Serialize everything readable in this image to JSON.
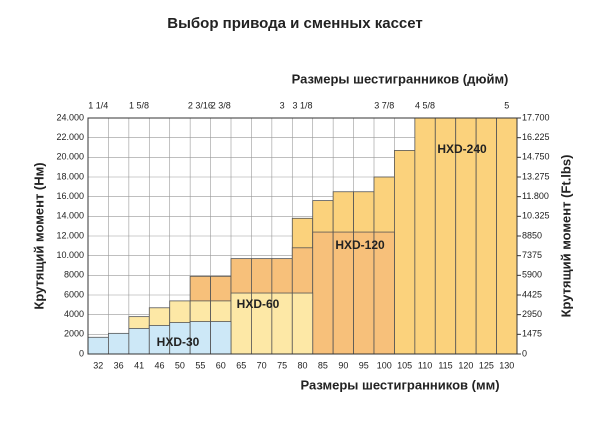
{
  "chart_data": {
    "type": "step",
    "title": "Выбор привода и сменных кассет",
    "top_axis_label": "Размеры шестигранников (дюйм)",
    "x_axis_label": "Размеры шестигранников (мм)",
    "y_axis_label": "Крутящий момент (Нм)",
    "y2_axis_label": "Крутящий момент (Ft.lbs)",
    "categories": [
      "32",
      "36",
      "41",
      "46",
      "50",
      "55",
      "60",
      "65",
      "70",
      "75",
      "80",
      "85",
      "90",
      "95",
      "100",
      "105",
      "110",
      "115",
      "120",
      "125",
      "130"
    ],
    "top_categories": [
      "1 1/4",
      null,
      "1 5/8",
      null,
      null,
      "2 3/16",
      "2 3/8",
      null,
      null,
      "3",
      "3 1/8",
      null,
      null,
      null,
      "3 7/8",
      null,
      "4 5/8",
      null,
      null,
      null,
      "5"
    ],
    "series": [
      {
        "name": "HXD-240",
        "color": "#fbd27c",
        "values": [
          null,
          null,
          null,
          null,
          null,
          null,
          null,
          null,
          null,
          null,
          13800,
          15600,
          16500,
          16500,
          18000,
          20700,
          24000,
          24000,
          24000,
          24000,
          24000
        ]
      },
      {
        "name": "HXD-120",
        "color": "#f7c07a",
        "values": [
          null,
          null,
          null,
          null,
          null,
          7900,
          7900,
          9700,
          9700,
          9700,
          10800,
          12400,
          12400,
          12400,
          12400,
          null,
          null,
          null,
          null,
          null,
          null
        ]
      },
      {
        "name": "HXD-60",
        "color": "#fde8a6",
        "values": [
          null,
          null,
          3800,
          4700,
          5400,
          5400,
          5400,
          6200,
          6200,
          6200,
          6200,
          null,
          null,
          null,
          null,
          null,
          null,
          null,
          null,
          null,
          null
        ]
      },
      {
        "name": "HXD-30",
        "color": "#cde8f7",
        "values": [
          1700,
          2100,
          2600,
          2900,
          3200,
          3300,
          3300,
          null,
          null,
          null,
          null,
          null,
          null,
          null,
          null,
          null,
          null,
          null,
          null,
          null,
          null
        ]
      }
    ],
    "ylim": [
      0,
      24000
    ],
    "yticks": [
      0,
      2000,
      4000,
      6000,
      8000,
      {
        "value": 10000,
        "label": "10.000"
      },
      {
        "value": 12000,
        "label": "12.000"
      },
      {
        "value": 14000,
        "label": "14.000"
      },
      {
        "value": 16000,
        "label": "16.000"
      },
      {
        "value": 18000,
        "label": "18.000"
      },
      {
        "value": 20000,
        "label": "20.000"
      },
      {
        "value": 22000,
        "label": "22.000"
      },
      {
        "value": 24000,
        "label": "24.000"
      }
    ],
    "y2lim": [
      0,
      17700
    ],
    "y2ticks": [
      0,
      1475,
      2950,
      4425,
      5900,
      7375,
      8850,
      {
        "value": 10325,
        "label": "10.325"
      },
      {
        "value": 11800,
        "label": "11.800"
      },
      {
        "value": 13275,
        "label": "13.275"
      },
      {
        "value": 14750,
        "label": "14.750"
      },
      {
        "value": 16225,
        "label": "16.225"
      },
      {
        "value": 17700,
        "label": "17.700"
      }
    ],
    "grid": true
  }
}
